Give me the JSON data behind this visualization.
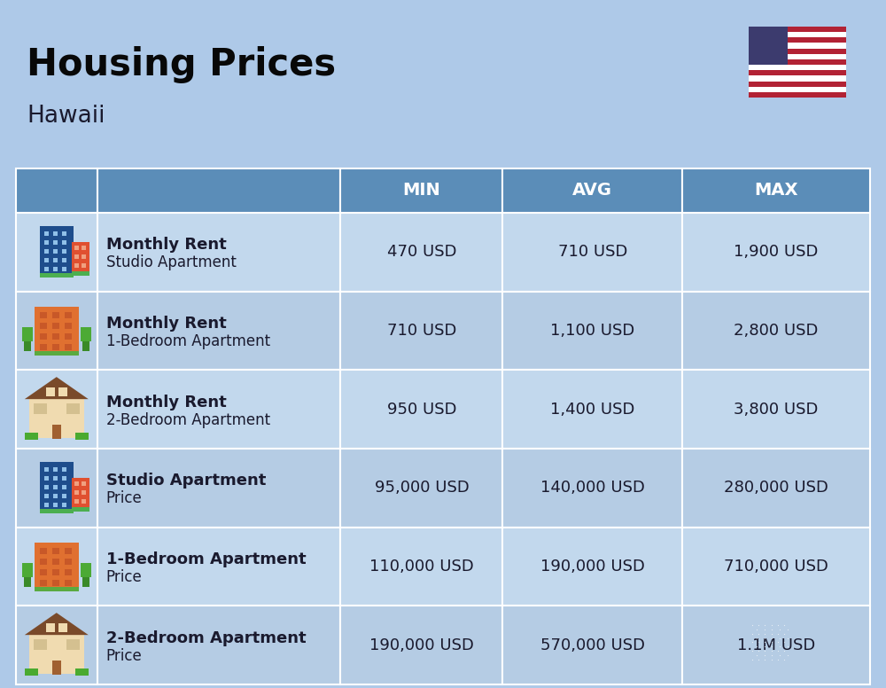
{
  "title": "Housing Prices",
  "subtitle": "Hawaii",
  "background_color": "#aec9e8",
  "header_bg_color": "#5b8db8",
  "header_text_color": "#ffffff",
  "row_bg_even": "#c2d8ed",
  "row_bg_odd": "#b5cce4",
  "cell_text_color": "#1a1a2e",
  "header_labels": [
    "MIN",
    "AVG",
    "MAX"
  ],
  "rows": [
    {
      "bold_label": "Monthly Rent",
      "sub_label": "Studio Apartment",
      "min": "470 USD",
      "avg": "710 USD",
      "max": "1,900 USD",
      "icon_type": "office_blue"
    },
    {
      "bold_label": "Monthly Rent",
      "sub_label": "1-Bedroom Apartment",
      "min": "710 USD",
      "avg": "1,100 USD",
      "max": "2,800 USD",
      "icon_type": "apt_orange"
    },
    {
      "bold_label": "Monthly Rent",
      "sub_label": "2-Bedroom Apartment",
      "min": "950 USD",
      "avg": "1,400 USD",
      "max": "3,800 USD",
      "icon_type": "house_tan"
    },
    {
      "bold_label": "Studio Apartment",
      "sub_label": "Price",
      "min": "95,000 USD",
      "avg": "140,000 USD",
      "max": "280,000 USD",
      "icon_type": "office_blue"
    },
    {
      "bold_label": "1-Bedroom Apartment",
      "sub_label": "Price",
      "min": "110,000 USD",
      "avg": "190,000 USD",
      "max": "710,000 USD",
      "icon_type": "apt_orange"
    },
    {
      "bold_label": "2-Bedroom Apartment",
      "sub_label": "Price",
      "min": "190,000 USD",
      "avg": "570,000 USD",
      "max": "1.1M USD",
      "icon_type": "house_tan2"
    }
  ],
  "title_fontsize": 30,
  "subtitle_fontsize": 19,
  "header_fontsize": 14,
  "cell_fontsize": 13,
  "bold_fontsize": 13
}
